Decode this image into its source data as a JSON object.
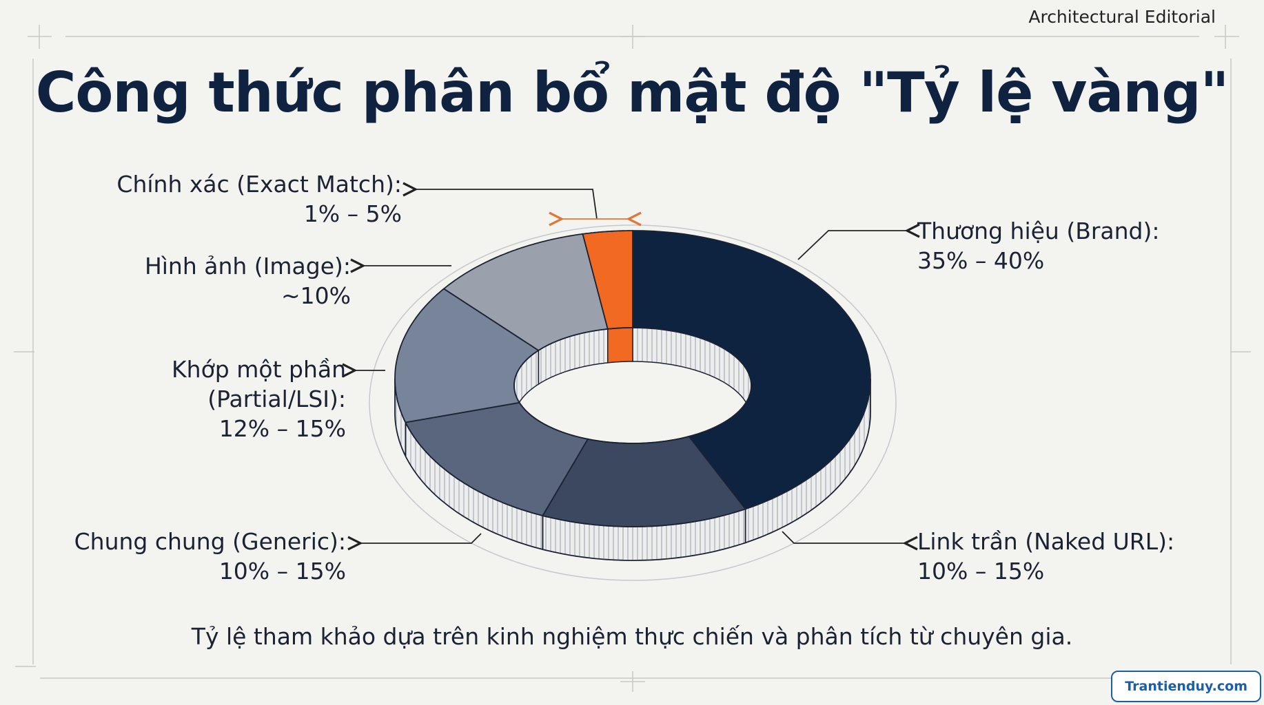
{
  "header": {
    "brand": "Architectural Editorial",
    "watermark": "Trantienduy.com"
  },
  "chart_data": {
    "type": "donut",
    "title": "Công thức phân bổ mật độ \"Tỷ lệ vàng\"",
    "categories": [
      "Thương hiệu (Brand):",
      "Link trần (Naked URL):",
      "Chung chung (Generic):",
      "Khớp một phần (Partial/LSI):",
      "Hình ảnh (Image):",
      "Chính xác (Exact Match):"
    ],
    "ranges": [
      [
        35,
        40
      ],
      [
        10,
        15
      ],
      [
        10,
        15
      ],
      [
        12,
        15
      ],
      [
        10
      ],
      [
        1,
        5
      ]
    ],
    "value_labels": [
      "35% – 40%",
      "10% – 15%",
      "10% – 15%",
      "12% – 15%",
      "~10%",
      "1% – 5%"
    ],
    "colors": [
      "#0d2340",
      "#3b4860",
      "#5a667d",
      "#788499",
      "#9aa1ad",
      "#f26a22"
    ],
    "footnote": "Tỷ lệ tham khảo dựa trên kinh nghiệm thực chiến và phân tích từ chuyên gia."
  }
}
